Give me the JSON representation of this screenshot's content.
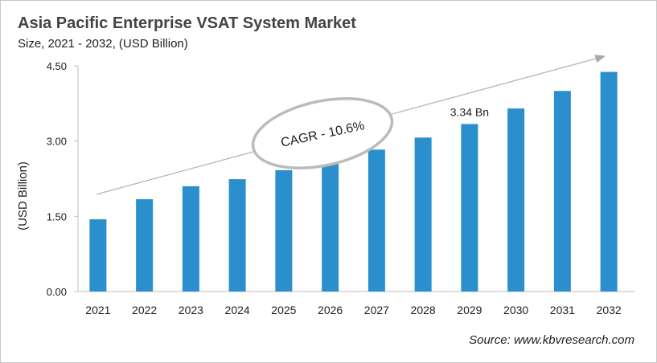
{
  "chart_data": {
    "type": "bar",
    "title": "Asia Pacific Enterprise VSAT System Market",
    "subtitle": "Size, 2021 - 2032, (USD Billion)",
    "ylabel": "(USD Billion)",
    "xlabel": "",
    "categories": [
      "2021",
      "2022",
      "2023",
      "2024",
      "2025",
      "2026",
      "2027",
      "2028",
      "2029",
      "2030",
      "2031",
      "2032"
    ],
    "values": [
      1.44,
      1.84,
      2.1,
      2.24,
      2.42,
      2.61,
      2.83,
      3.07,
      3.34,
      3.65,
      4.0,
      4.38
    ],
    "ylim": [
      0,
      4.5
    ],
    "yticks": [
      "0.00",
      "1.50",
      "3.00",
      "4.50"
    ],
    "grid": false,
    "bar_color": "#2b8fcd",
    "annotations": {
      "data_label": {
        "category": "2029",
        "text": "3.34 Bn"
      },
      "cagr": "CAGR - 10.6%"
    },
    "source": "Source: www.kbvresearch.com"
  }
}
